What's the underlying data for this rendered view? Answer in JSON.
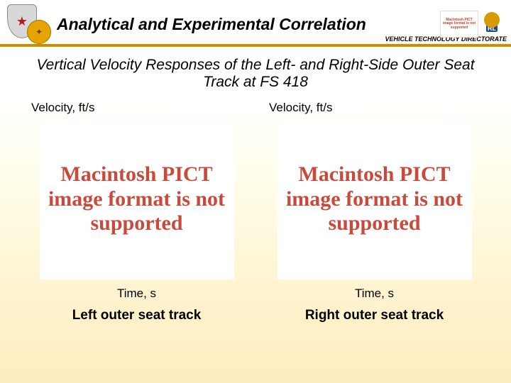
{
  "header": {
    "title": "Analytical and Experimental Correlation",
    "directorate": "VEHICLE TECHNOLOGY DIRECTORATE",
    "underline_color": "#c99200",
    "tiny_placeholder_text": "Macintosh PICT image format is not supported",
    "rl_text": "RL"
  },
  "section_title": "Vertical Velocity Responses of the Left- and Right-Side Outer Seat Track at FS 418",
  "chart_left": {
    "y_label": "Velocity, ft/s",
    "x_label": "Time, s",
    "caption": "Left outer seat track",
    "placeholder_text": "Macintosh PICT image format is not supported",
    "placeholder_color": "#c94a3a",
    "placeholder_bg": "#ffffff"
  },
  "chart_right": {
    "y_label": "Velocity, ft/s",
    "x_label": "Time, s",
    "caption": "Right outer seat track",
    "placeholder_text": "Macintosh PICT image format is not supported",
    "placeholder_color": "#c94a3a",
    "placeholder_bg": "#ffffff"
  },
  "background_gradient": {
    "top": "#ffffff",
    "bottom": "#fdecc0"
  }
}
